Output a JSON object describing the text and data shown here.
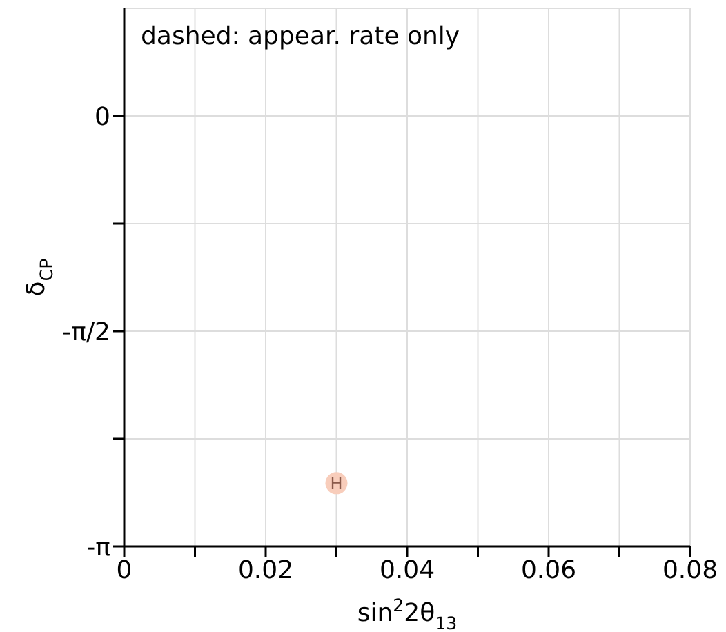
{
  "chart_data": {
    "type": "scatter",
    "xlabel": "sin$^{2}$2θ$_{13}$",
    "ylabel": "δ$_{CP}$",
    "x": [
      0.03
    ],
    "values": [
      -2.68
    ],
    "color": "#f8cdbb",
    "marker": "circle",
    "xlim": [
      0,
      0.08
    ],
    "xticks": [
      0,
      {
        "value": 0.01,
        "label": null
      },
      0.02,
      {
        "value": 0.03,
        "label": null
      },
      0.04,
      {
        "value": 0.05,
        "label": null
      },
      0.06,
      {
        "value": 0.07,
        "label": null
      },
      0.08
    ],
    "ylim": [
      -3.1416,
      0.7854
    ],
    "yticks": [
      {
        "value": -3.1416,
        "label": "-π"
      },
      {
        "value": -2.3562,
        "label": null
      },
      {
        "value": -1.5708,
        "label": "-π/2"
      },
      {
        "value": -0.7854,
        "label": null
      },
      {
        "value": 0,
        "label": "0"
      }
    ],
    "grid": true,
    "annotations": [
      "dashed: appear. rate only",
      {
        "text": "H",
        "x": 0.03,
        "y": -2.68
      }
    ]
  }
}
